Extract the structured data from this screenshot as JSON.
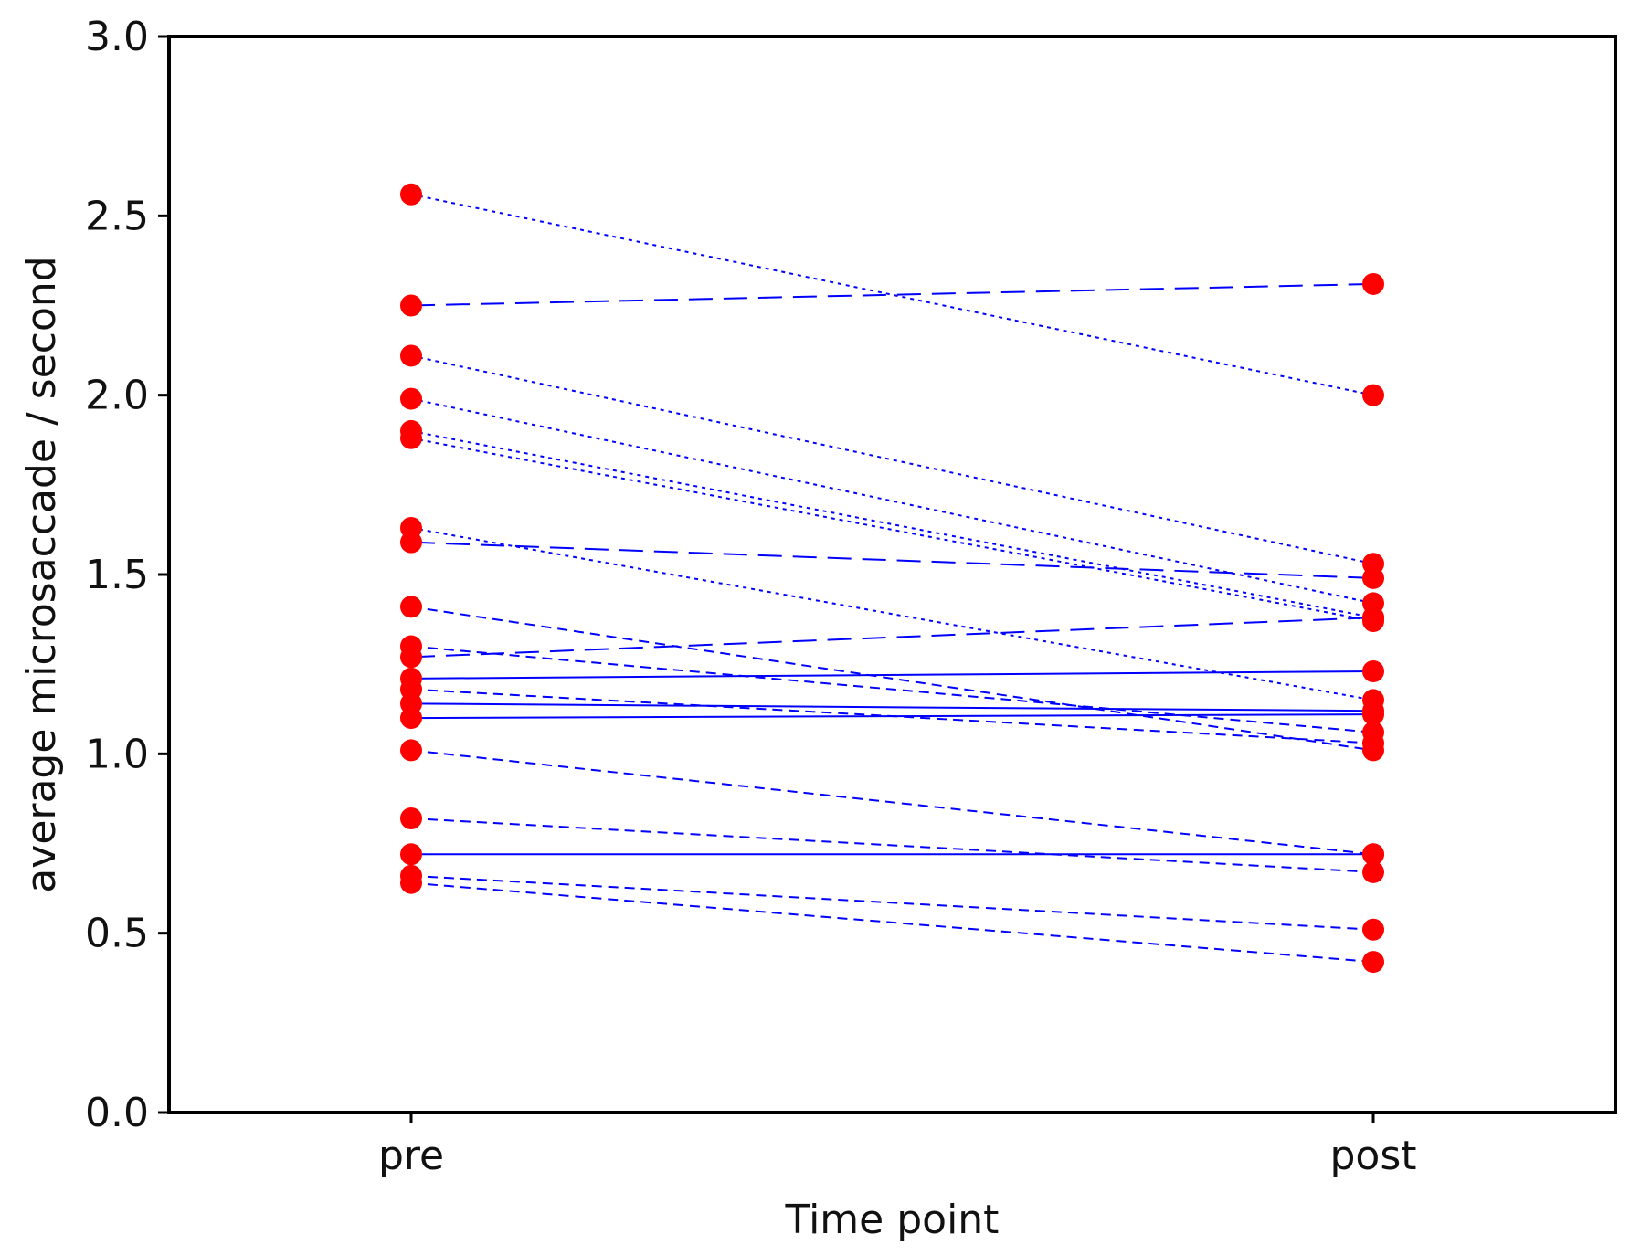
{
  "chart_data": {
    "type": "line",
    "title": "",
    "xlabel": "Time point",
    "ylabel": "average microsaccade / second",
    "categories": [
      "pre",
      "post"
    ],
    "ylim": [
      0.0,
      3.0
    ],
    "yticks": [
      "0.0",
      "0.5",
      "1.0",
      "1.5",
      "2.0",
      "2.5",
      "3.0"
    ],
    "grid": false,
    "legend": "none",
    "colors": {
      "marker": "#ff0000",
      "line": "#0000ff",
      "axis": "#000000"
    },
    "series": [
      {
        "values": [
          2.56,
          2.0
        ],
        "dash": "dotted"
      },
      {
        "values": [
          2.25,
          2.31
        ],
        "dash": "long-dash"
      },
      {
        "values": [
          2.11,
          1.53
        ],
        "dash": "dotted"
      },
      {
        "values": [
          1.99,
          1.42
        ],
        "dash": "dotted"
      },
      {
        "values": [
          1.9,
          1.38
        ],
        "dash": "dotted"
      },
      {
        "values": [
          1.88,
          1.37
        ],
        "dash": "dotted"
      },
      {
        "values": [
          1.63,
          1.15
        ],
        "dash": "dotted"
      },
      {
        "values": [
          1.59,
          1.49
        ],
        "dash": "long-dash"
      },
      {
        "values": [
          1.41,
          1.01
        ],
        "dash": "dashed"
      },
      {
        "values": [
          1.3,
          1.06
        ],
        "dash": "dashed"
      },
      {
        "values": [
          1.27,
          1.38
        ],
        "dash": "long-dash"
      },
      {
        "values": [
          1.21,
          1.23
        ],
        "dash": "solid"
      },
      {
        "values": [
          1.18,
          1.03
        ],
        "dash": "dashed"
      },
      {
        "values": [
          1.14,
          1.12
        ],
        "dash": "solid"
      },
      {
        "values": [
          1.1,
          1.11
        ],
        "dash": "solid"
      },
      {
        "values": [
          1.01,
          0.72
        ],
        "dash": "dashed"
      },
      {
        "values": [
          0.82,
          0.67
        ],
        "dash": "dashed"
      },
      {
        "values": [
          0.72,
          0.72
        ],
        "dash": "solid"
      },
      {
        "values": [
          0.66,
          0.51
        ],
        "dash": "dashed"
      },
      {
        "values": [
          0.64,
          0.42
        ],
        "dash": "dashed"
      }
    ]
  }
}
